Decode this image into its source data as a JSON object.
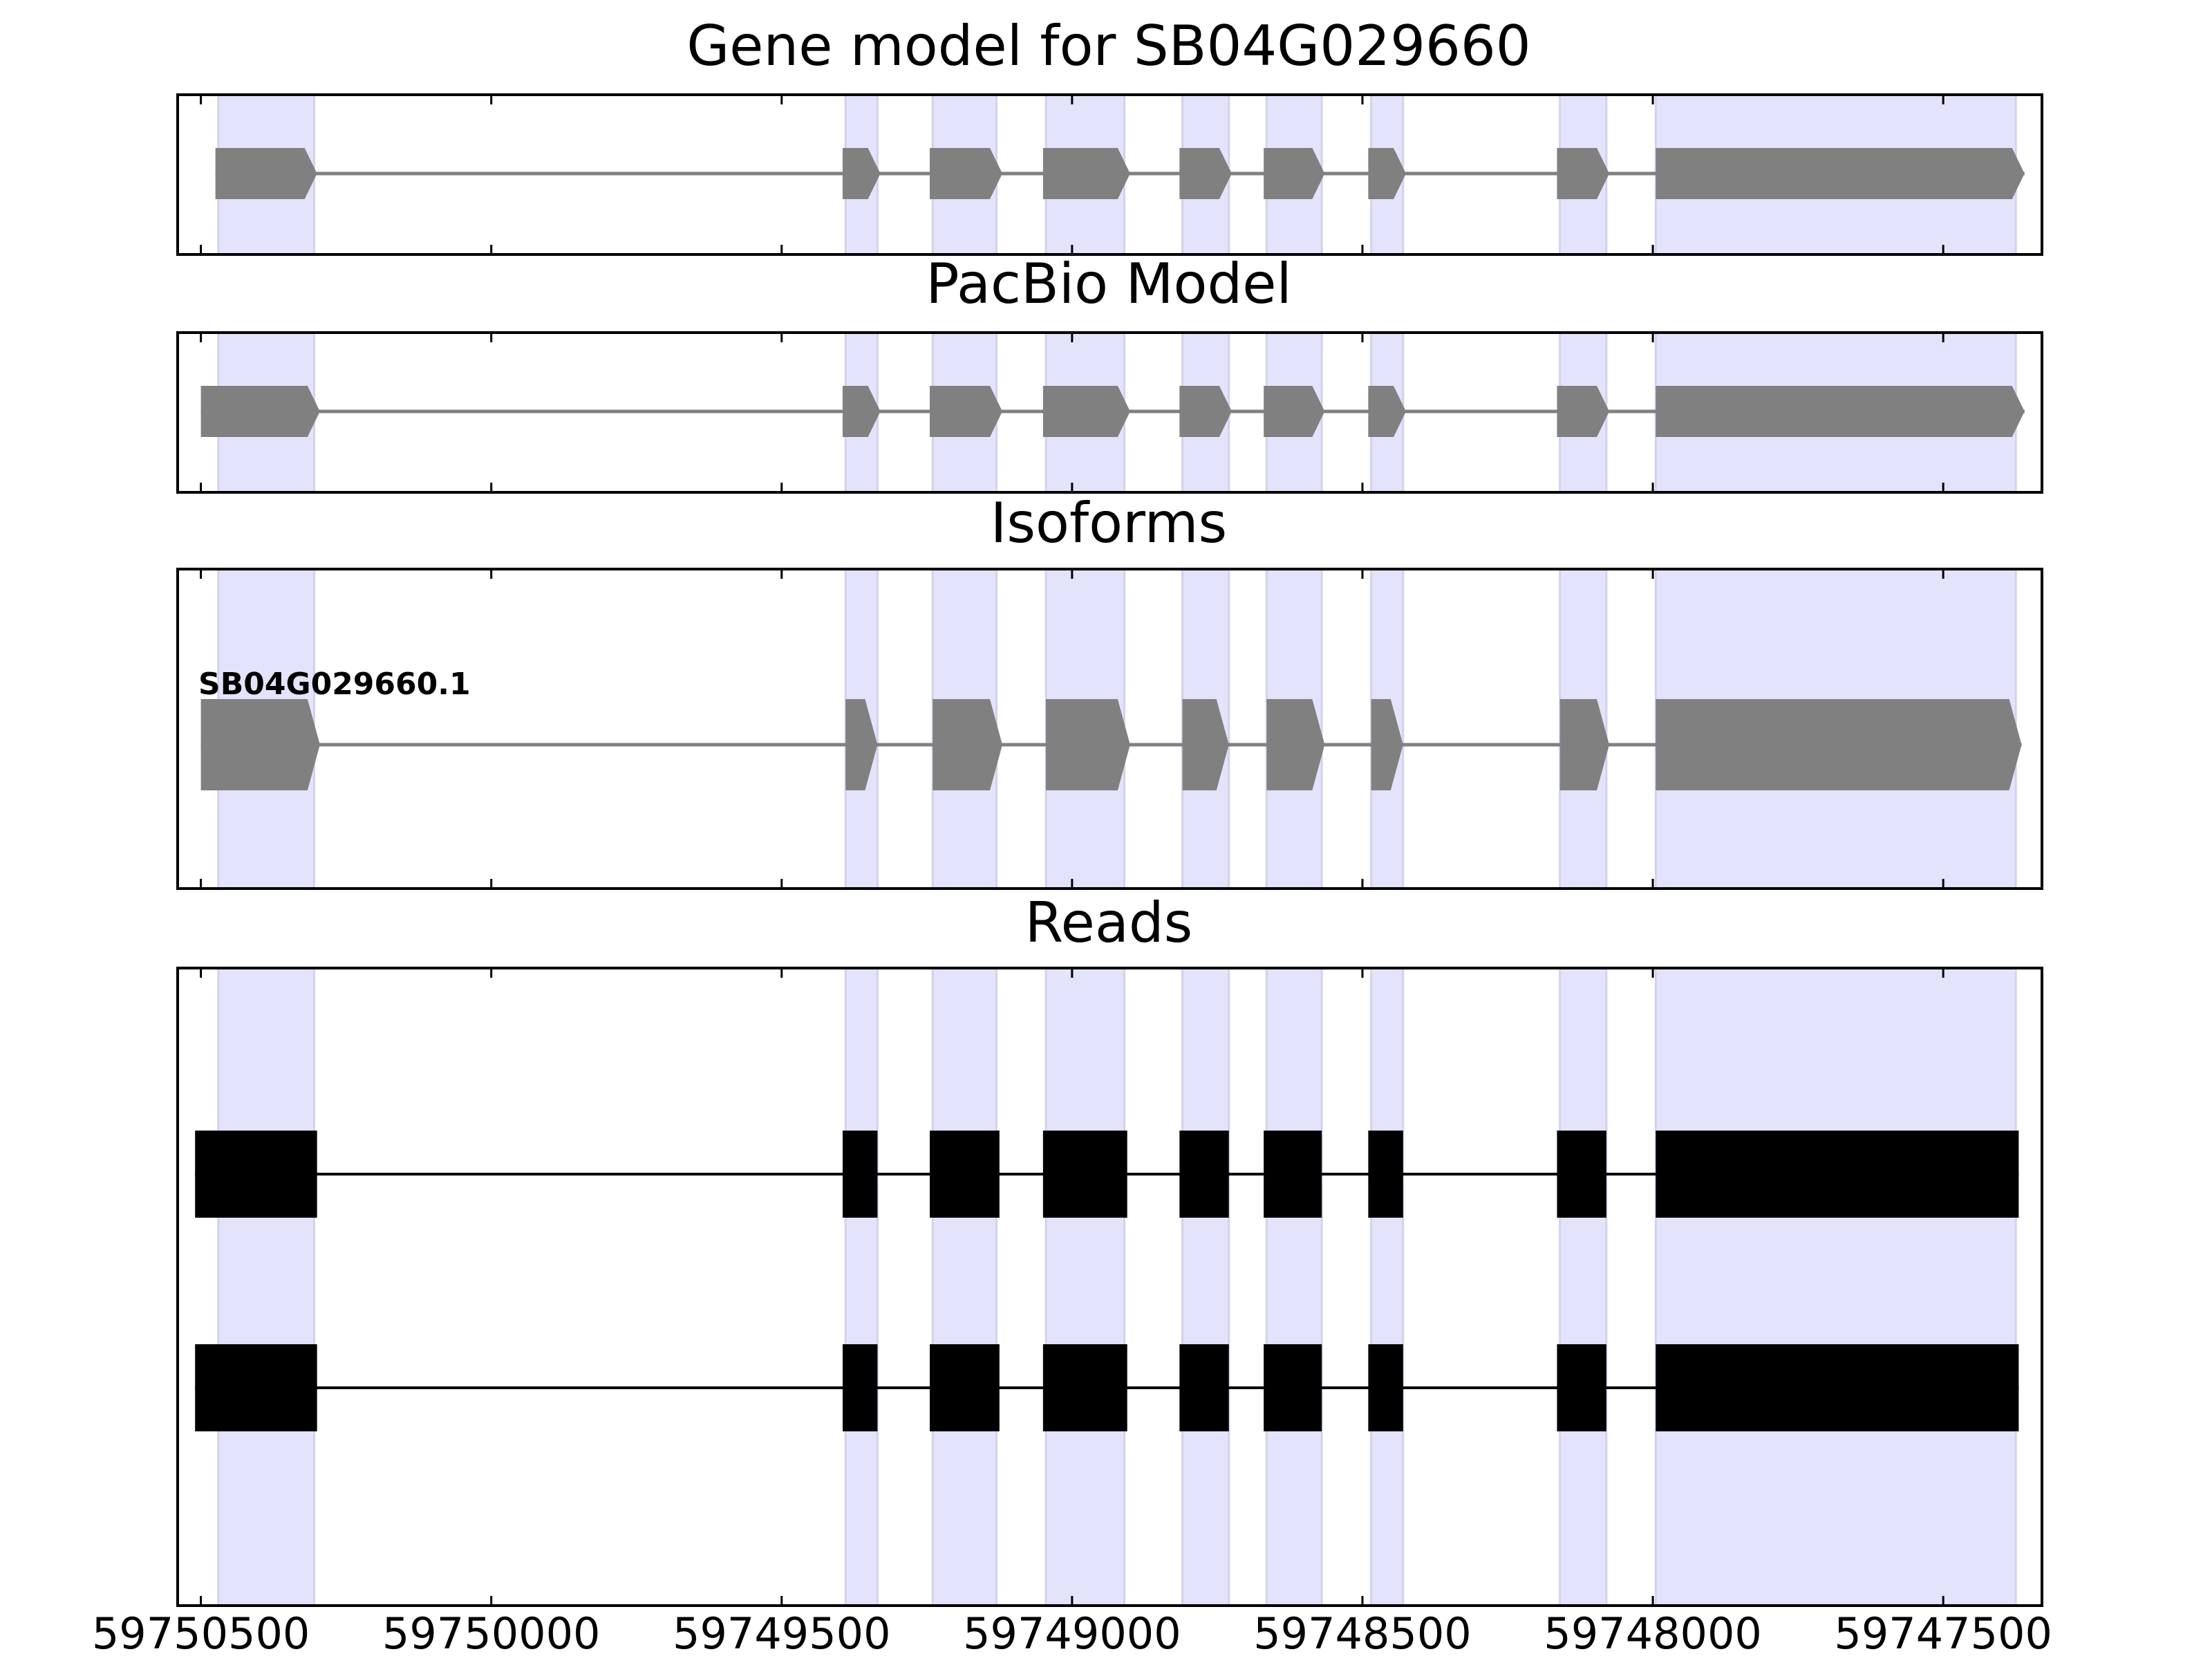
{
  "chart_data": {
    "type": "gene-structure",
    "x_axis": {
      "direction": "descending",
      "xlim": [
        59750540,
        59747330
      ],
      "ticks": [
        59750500,
        59750000,
        59749500,
        59749000,
        59748500,
        59748000,
        59747500
      ],
      "tick_labels": [
        "59750500",
        "59750000",
        "59749500",
        "59749000",
        "59748500",
        "59748000",
        "59747500"
      ]
    },
    "highlight_color": "#e3e3fb",
    "highlight_regions": [
      [
        59750470,
        59750305
      ],
      [
        59749390,
        59749335
      ],
      [
        59749240,
        59749130
      ],
      [
        59749045,
        59748910
      ],
      [
        59748810,
        59748730
      ],
      [
        59748665,
        59748570
      ],
      [
        59748485,
        59748430
      ],
      [
        59748160,
        59748080
      ],
      [
        59747995,
        59747375
      ]
    ],
    "panels": [
      {
        "key": "gene_model",
        "title": "Gene model for SB04G029660",
        "style": "arrows",
        "color": "#808080",
        "tracks": [
          {
            "label": "",
            "exons": [
              [
                59750475,
                59750300
              ],
              [
                59749395,
                59749330
              ],
              [
                59749245,
                59749120
              ],
              [
                59749050,
                59748900
              ],
              [
                59748815,
                59748725
              ],
              [
                59748670,
                59748565
              ],
              [
                59748490,
                59748425
              ],
              [
                59748165,
                59748075
              ],
              [
                59747995,
                59747360
              ]
            ]
          }
        ]
      },
      {
        "key": "pacbio_model",
        "title": "PacBio Model",
        "style": "arrows",
        "color": "#808080",
        "tracks": [
          {
            "label": "",
            "exons": [
              [
                59750500,
                59750295
              ],
              [
                59749395,
                59749330
              ],
              [
                59749245,
                59749120
              ],
              [
                59749050,
                59748900
              ],
              [
                59748815,
                59748725
              ],
              [
                59748670,
                59748565
              ],
              [
                59748490,
                59748425
              ],
              [
                59748165,
                59748075
              ],
              [
                59747995,
                59747360
              ]
            ]
          }
        ]
      },
      {
        "key": "isoforms",
        "title": "Isoforms",
        "style": "arrows",
        "color": "#808080",
        "tracks": [
          {
            "label": "SB04G029660.1",
            "exons": [
              [
                59750500,
                59750295
              ],
              [
                59749390,
                59749335
              ],
              [
                59749240,
                59749120
              ],
              [
                59749045,
                59748900
              ],
              [
                59748810,
                59748730
              ],
              [
                59748665,
                59748565
              ],
              [
                59748485,
                59748430
              ],
              [
                59748160,
                59748075
              ],
              [
                59747995,
                59747365
              ]
            ]
          }
        ]
      },
      {
        "key": "reads",
        "title": "Reads",
        "style": "blocks",
        "color": "#000000",
        "tracks": [
          {
            "label": "",
            "exons": [
              [
                59750510,
                59750300
              ],
              [
                59749395,
                59749335
              ],
              [
                59749245,
                59749125
              ],
              [
                59749050,
                59748905
              ],
              [
                59748815,
                59748730
              ],
              [
                59748670,
                59748570
              ],
              [
                59748490,
                59748430
              ],
              [
                59748165,
                59748080
              ],
              [
                59747995,
                59747370
              ]
            ]
          },
          {
            "label": "",
            "exons": [
              [
                59750510,
                59750300
              ],
              [
                59749395,
                59749335
              ],
              [
                59749245,
                59749125
              ],
              [
                59749050,
                59748905
              ],
              [
                59748815,
                59748730
              ],
              [
                59748670,
                59748570
              ],
              [
                59748490,
                59748430
              ],
              [
                59748165,
                59748080
              ],
              [
                59747995,
                59747370
              ]
            ]
          }
        ]
      }
    ]
  }
}
